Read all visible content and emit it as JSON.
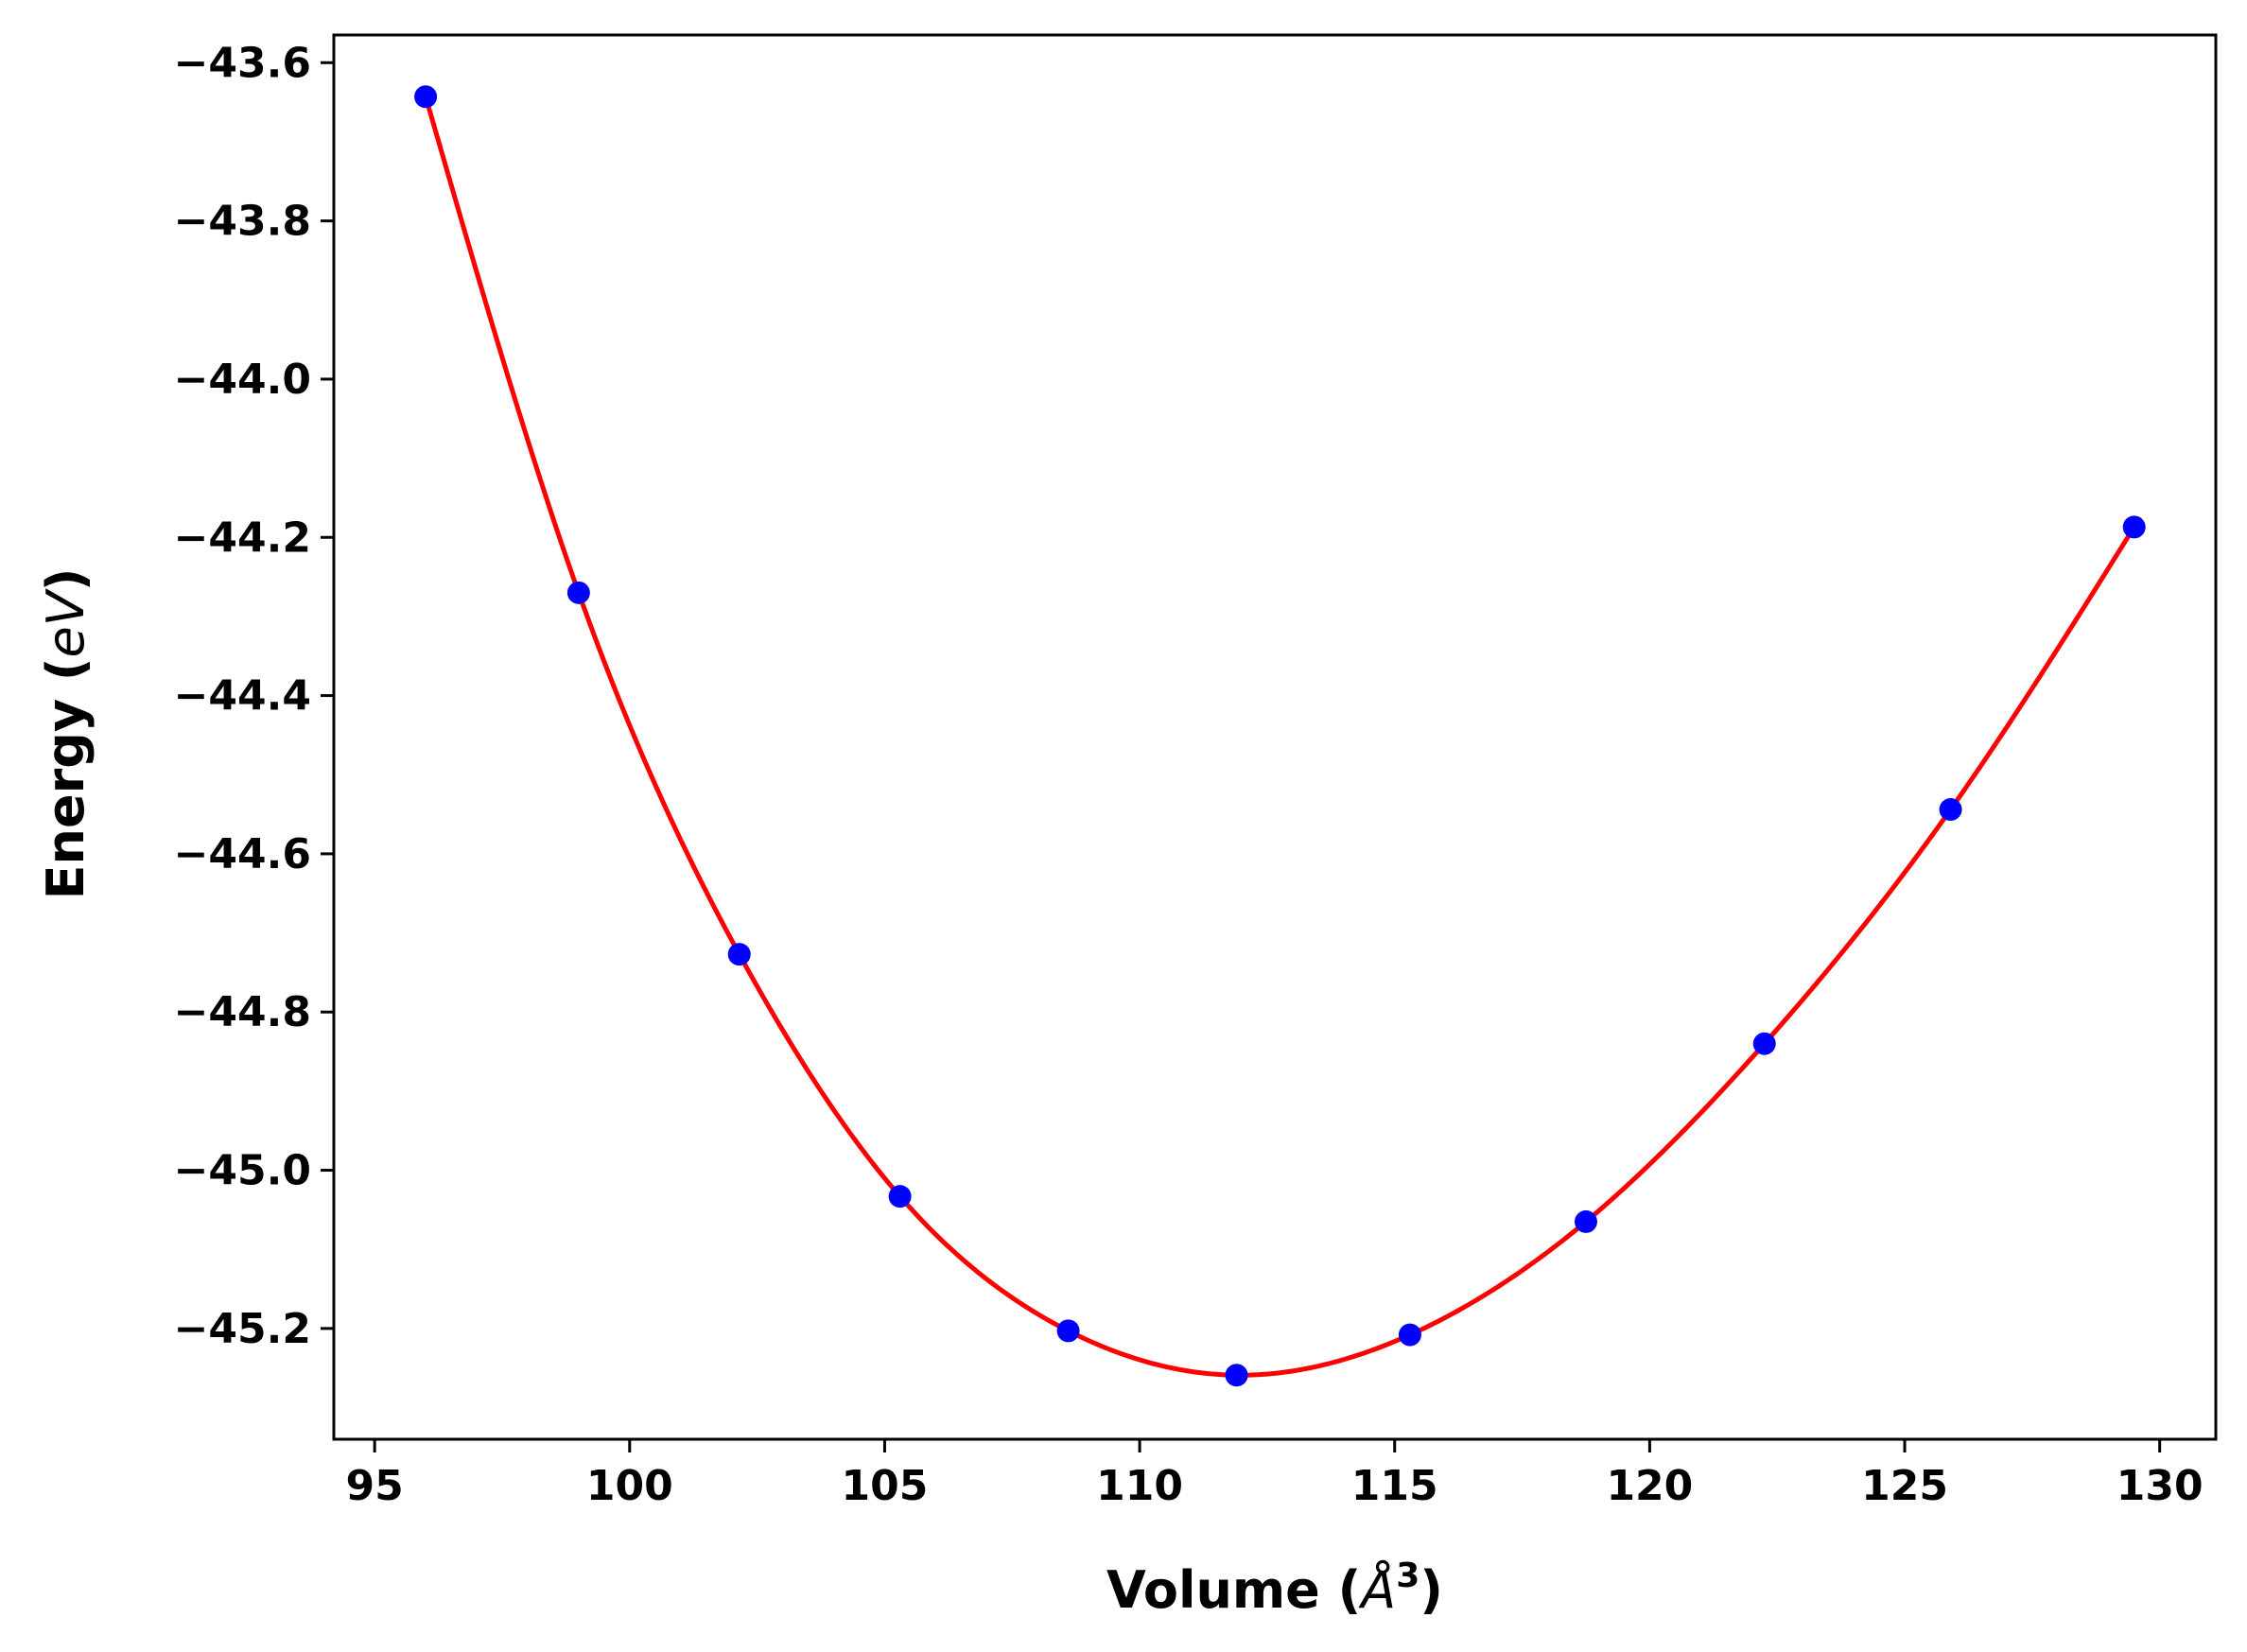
{
  "chart_data": {
    "type": "scatter",
    "title": "",
    "xlabel": "Volume (Å³)",
    "xlabel_parts": {
      "prefix": "Volume (",
      "unit_italic": "Å",
      "unit_sup": "3",
      "suffix": ")"
    },
    "ylabel": "Energy (eV)",
    "ylabel_parts": {
      "prefix": "Energy (",
      "unit_italic": "eV",
      "suffix": ")"
    },
    "xlim": [
      94.2,
      131.1
    ],
    "ylim": [
      -45.34,
      -43.565
    ],
    "xticks": [
      95,
      100,
      105,
      110,
      115,
      120,
      125,
      130
    ],
    "xtick_labels": [
      "95",
      "100",
      "105",
      "110",
      "115",
      "120",
      "125",
      "130"
    ],
    "yticks": [
      -43.6,
      -43.8,
      -44.0,
      -44.2,
      -44.4,
      -44.6,
      -44.8,
      -45.0,
      -45.2
    ],
    "ytick_labels": [
      "−43.6",
      "−43.8",
      "−44.0",
      "−44.2",
      "−44.4",
      "−44.6",
      "−44.8",
      "−45.0",
      "−45.2"
    ],
    "grid": false,
    "series": [
      {
        "kind": "points",
        "color": "#0000ff",
        "x": [
          96.0,
          99.0,
          102.15,
          105.3,
          108.6,
          111.9,
          115.3,
          118.75,
          122.25,
          125.9,
          129.5
        ],
        "y": [
          -43.643,
          -44.27,
          -44.727,
          -45.033,
          -45.203,
          -45.259,
          -45.208,
          -45.065,
          -44.84,
          -44.544,
          -44.187
        ]
      },
      {
        "kind": "fit-curve",
        "color": "#ff0000",
        "x_range": [
          96.0,
          129.5
        ],
        "minimum": {
          "x": 111.9,
          "y": -45.259
        }
      }
    ]
  }
}
